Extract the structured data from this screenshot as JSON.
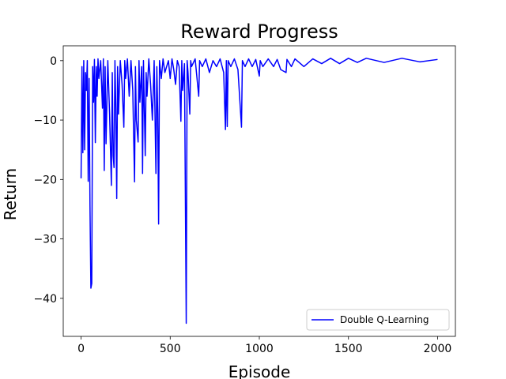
{
  "chart_data": {
    "type": "line",
    "title": "Reward Progress",
    "x_label": "Episode",
    "y_label": "Return",
    "x": [
      0,
      5,
      10,
      15,
      20,
      25,
      30,
      35,
      40,
      45,
      50,
      55,
      60,
      65,
      70,
      75,
      80,
      85,
      90,
      95,
      100,
      110,
      120,
      125,
      130,
      135,
      140,
      150,
      160,
      170,
      175,
      180,
      185,
      190,
      195,
      200,
      205,
      210,
      220,
      230,
      240,
      245,
      250,
      260,
      270,
      280,
      290,
      300,
      305,
      310,
      320,
      325,
      330,
      340,
      345,
      350,
      360,
      365,
      370,
      380,
      390,
      400,
      410,
      420,
      425,
      430,
      435,
      440,
      450,
      460,
      470,
      480,
      490,
      500,
      510,
      520,
      530,
      540,
      550,
      560,
      565,
      570,
      580,
      590,
      595,
      600,
      610,
      615,
      620,
      640,
      660,
      665,
      680,
      700,
      720,
      740,
      760,
      780,
      800,
      810,
      815,
      820,
      825,
      840,
      860,
      880,
      900,
      905,
      920,
      940,
      960,
      980,
      1000,
      1005,
      1020,
      1050,
      1080,
      1100,
      1120,
      1150,
      1155,
      1180,
      1200,
      1250,
      1300,
      1350,
      1400,
      1450,
      1500,
      1550,
      1600,
      1700,
      1800,
      1900,
      2000
    ],
    "series": [
      {
        "name": "Double Q-Learning",
        "color": "#0000ff",
        "values": [
          -19.8,
          -1,
          -15.5,
          0,
          -15,
          -2,
          -5,
          0,
          -20.3,
          -3,
          -24.5,
          -38.3,
          -37.5,
          -1,
          -7,
          0.2,
          -13.8,
          -1,
          -6,
          0.3,
          -3,
          0,
          -8,
          0.3,
          -18.5,
          -1,
          -14,
          0,
          -9,
          -21,
          -2,
          -16,
          -18,
          0,
          -8,
          -23.2,
          -1,
          -9,
          0,
          -4,
          -11.2,
          0,
          -3,
          0.3,
          -6,
          0,
          -5,
          -20.4,
          -1,
          -10,
          -13.7,
          0,
          -7,
          -1,
          -19,
          0,
          -16,
          -2,
          -6,
          0.3,
          -4,
          -10,
          0,
          -19,
          -1,
          -9,
          -27.5,
          0,
          -3,
          0.3,
          -2,
          -1,
          0,
          -3,
          0.3,
          -1.5,
          -4,
          0,
          -1,
          -10.2,
          0,
          -5,
          -0.5,
          -44.2,
          0,
          -2,
          -9,
          0,
          -1,
          0.3,
          -6,
          0,
          -1,
          0.3,
          -2,
          0,
          -1,
          0.3,
          -2,
          -11.6,
          0,
          -11.1,
          0,
          -1,
          0.3,
          -1.5,
          -11.2,
          0,
          -1,
          0.3,
          -1,
          0.2,
          -2.6,
          0,
          -1,
          0.3,
          -1,
          0.2,
          -1.5,
          -2,
          0.2,
          -1,
          0.3,
          -1,
          0.3,
          -0.5,
          0.4,
          -0.5,
          0.4,
          -0.3,
          0.4,
          -0.3,
          0.4,
          -0.2,
          0.2
        ]
      }
    ],
    "xlim": [
      -100,
      2100
    ],
    "xticks": [
      0,
      500,
      1000,
      1500,
      2000
    ],
    "ylim": [
      -46.4,
      2.5
    ],
    "yticks": [
      {
        "value": -40,
        "label": "−40"
      },
      {
        "value": -30,
        "label": "−30"
      },
      {
        "value": -20,
        "label": "−20"
      },
      {
        "value": -10,
        "label": "−10"
      },
      0
    ],
    "legend": "lower right"
  }
}
